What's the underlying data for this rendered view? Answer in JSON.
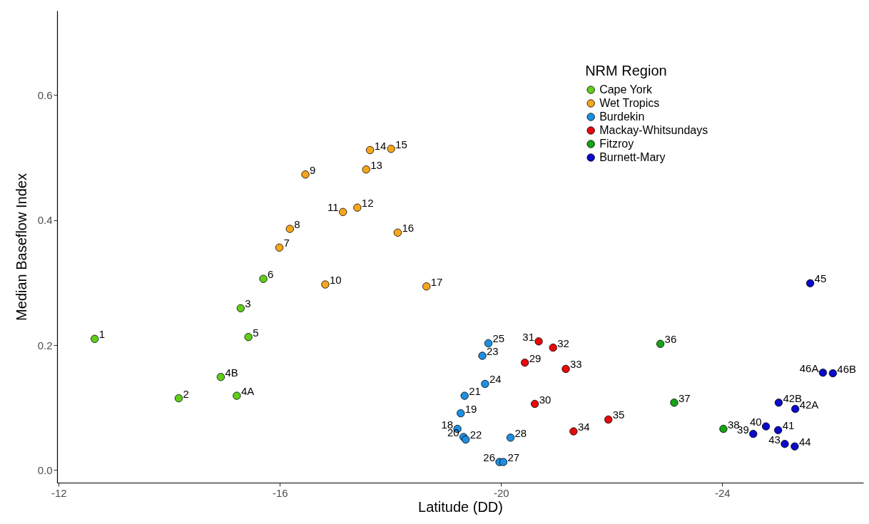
{
  "chart_data": {
    "type": "scatter",
    "xlabel": "Latitude (DD)",
    "ylabel": "Median Baseflow Index",
    "legend_title": "NRM Region",
    "legend": "top right",
    "marker": "circle",
    "grid": false,
    "xlim": [
      -11.97,
      -26.55
    ],
    "xticks": [
      -12,
      -16,
      -20,
      -24
    ],
    "ylim": [
      -0.02,
      0.735
    ],
    "yticks": [
      {
        "value": 0,
        "label": "0.0"
      },
      0.2,
      0.4,
      0.6
    ],
    "series": [
      {
        "name": "Cape York",
        "color": "#5fcf1a",
        "x": [
          -12.65,
          -14.17,
          -15.29,
          -14.93,
          -15.22,
          -15.43,
          -15.7
        ],
        "values": [
          0.21,
          0.115,
          0.259,
          0.149,
          0.119,
          0.213,
          0.306
        ]
      },
      {
        "name": "Wet Tropics",
        "color": "#f7a61c",
        "x": [
          -15.99,
          -16.18,
          -16.46,
          -16.82,
          -17.14,
          -17.4,
          -17.56,
          -17.63,
          -18.01,
          -18.13,
          -18.65
        ],
        "values": [
          0.356,
          0.386,
          0.473,
          0.297,
          0.413,
          0.42,
          0.481,
          0.512,
          0.514,
          0.38,
          0.294
        ]
      },
      {
        "name": "Burdekin",
        "color": "#1f8fe0",
        "x": [
          -19.21,
          -19.27,
          -19.32,
          -19.34,
          -19.36,
          -19.66,
          -19.71,
          -19.77,
          -19.97,
          -20.04,
          -20.17
        ],
        "values": [
          0.066,
          0.091,
          0.053,
          0.119,
          0.049,
          0.183,
          0.138,
          0.203,
          0.013,
          0.013,
          0.052
        ]
      },
      {
        "name": "Mackay-Whitsundays",
        "color": "#e60a0a",
        "x": [
          -20.43,
          -20.61,
          -20.68,
          -20.94,
          -21.17,
          -21.31,
          -21.94
        ],
        "values": [
          0.172,
          0.106,
          0.206,
          0.196,
          0.162,
          0.062,
          0.081
        ]
      },
      {
        "name": "Fitzroy",
        "color": "#16a316",
        "x": [
          -22.88,
          -23.13,
          -24.02
        ],
        "values": [
          0.202,
          0.108,
          0.066
        ]
      },
      {
        "name": "Burnett-Mary",
        "color": "#0a0ac8",
        "x": [
          -24.56,
          -24.79,
          -25.01,
          -25.02,
          -25.32,
          -25.13,
          -25.31,
          -25.59,
          -25.82,
          -26.0
        ],
        "values": [
          0.058,
          0.07,
          0.064,
          0.108,
          0.098,
          0.042,
          0.038,
          0.299,
          0.156,
          0.155
        ]
      }
    ],
    "annotations": [
      {
        "text": "1",
        "x": -12.65,
        "y": 0.21
      },
      {
        "text": "2",
        "x": -14.17,
        "y": 0.115
      },
      {
        "text": "3",
        "x": -15.29,
        "y": 0.259
      },
      {
        "text": "4B",
        "x": -14.93,
        "y": 0.149
      },
      {
        "text": "4A",
        "x": -15.22,
        "y": 0.119
      },
      {
        "text": "5",
        "x": -15.43,
        "y": 0.213
      },
      {
        "text": "6",
        "x": -15.7,
        "y": 0.306
      },
      {
        "text": "7",
        "x": -15.99,
        "y": 0.356
      },
      {
        "text": "8",
        "x": -16.18,
        "y": 0.386
      },
      {
        "text": "9",
        "x": -16.46,
        "y": 0.473
      },
      {
        "text": "10",
        "x": -16.82,
        "y": 0.297
      },
      {
        "text": "11",
        "x": -17.14,
        "y": 0.413
      },
      {
        "text": "12",
        "x": -17.4,
        "y": 0.42
      },
      {
        "text": "13",
        "x": -17.56,
        "y": 0.481
      },
      {
        "text": "14",
        "x": -17.63,
        "y": 0.512
      },
      {
        "text": "15",
        "x": -18.01,
        "y": 0.514
      },
      {
        "text": "16",
        "x": -18.13,
        "y": 0.38
      },
      {
        "text": "17",
        "x": -18.65,
        "y": 0.294
      },
      {
        "text": "18",
        "x": -19.21,
        "y": 0.066
      },
      {
        "text": "19",
        "x": -19.27,
        "y": 0.091
      },
      {
        "text": "20",
        "x": -19.32,
        "y": 0.053
      },
      {
        "text": "21",
        "x": -19.34,
        "y": 0.119
      },
      {
        "text": "22",
        "x": -19.36,
        "y": 0.049
      },
      {
        "text": "23",
        "x": -19.66,
        "y": 0.183
      },
      {
        "text": "24",
        "x": -19.71,
        "y": 0.138
      },
      {
        "text": "25",
        "x": -19.77,
        "y": 0.203
      },
      {
        "text": "26",
        "x": -19.97,
        "y": 0.013
      },
      {
        "text": "27",
        "x": -20.04,
        "y": 0.013
      },
      {
        "text": "28",
        "x": -20.17,
        "y": 0.052
      },
      {
        "text": "29",
        "x": -20.43,
        "y": 0.172
      },
      {
        "text": "30",
        "x": -20.61,
        "y": 0.106
      },
      {
        "text": "31",
        "x": -20.68,
        "y": 0.206
      },
      {
        "text": "32",
        "x": -20.94,
        "y": 0.196
      },
      {
        "text": "33",
        "x": -21.17,
        "y": 0.162
      },
      {
        "text": "34",
        "x": -21.31,
        "y": 0.062
      },
      {
        "text": "35",
        "x": -21.94,
        "y": 0.081
      },
      {
        "text": "36",
        "x": -22.88,
        "y": 0.202
      },
      {
        "text": "37",
        "x": -23.13,
        "y": 0.108
      },
      {
        "text": "38",
        "x": -24.02,
        "y": 0.066
      },
      {
        "text": "39",
        "x": -24.56,
        "y": 0.058
      },
      {
        "text": "40",
        "x": -24.79,
        "y": 0.07
      },
      {
        "text": "41",
        "x": -25.01,
        "y": 0.064
      },
      {
        "text": "42B",
        "x": -25.02,
        "y": 0.108
      },
      {
        "text": "42A",
        "x": -25.32,
        "y": 0.098
      },
      {
        "text": "43",
        "x": -25.13,
        "y": 0.042
      },
      {
        "text": "44",
        "x": -25.31,
        "y": 0.038
      },
      {
        "text": "45",
        "x": -25.59,
        "y": 0.299
      },
      {
        "text": "46A",
        "x": -25.82,
        "y": 0.156
      },
      {
        "text": "46B",
        "x": -26.0,
        "y": 0.155
      }
    ]
  }
}
